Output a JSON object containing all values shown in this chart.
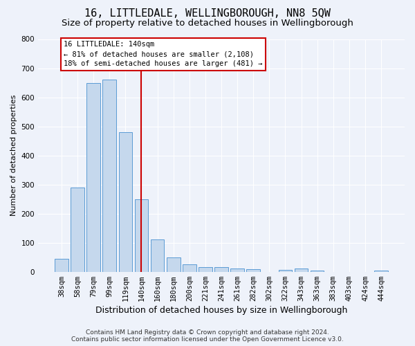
{
  "title": "16, LITTLEDALE, WELLINGBOROUGH, NN8 5QW",
  "subtitle": "Size of property relative to detached houses in Wellingborough",
  "xlabel": "Distribution of detached houses by size in Wellingborough",
  "ylabel": "Number of detached properties",
  "categories": [
    "38sqm",
    "58sqm",
    "79sqm",
    "99sqm",
    "119sqm",
    "140sqm",
    "160sqm",
    "180sqm",
    "200sqm",
    "221sqm",
    "241sqm",
    "261sqm",
    "282sqm",
    "302sqm",
    "322sqm",
    "343sqm",
    "363sqm",
    "383sqm",
    "403sqm",
    "424sqm",
    "444sqm"
  ],
  "values": [
    45,
    290,
    650,
    660,
    480,
    250,
    110,
    50,
    25,
    15,
    15,
    10,
    8,
    0,
    7,
    10,
    5,
    0,
    0,
    0,
    5
  ],
  "bar_color": "#c5d8ed",
  "bar_edge_color": "#5b9bd5",
  "highlight_index": 5,
  "highlight_line_color": "#cc0000",
  "annotation_text": "16 LITTLEDALE: 140sqm\n← 81% of detached houses are smaller (2,108)\n18% of semi-detached houses are larger (481) →",
  "annotation_box_color": "#ffffff",
  "annotation_box_edge": "#cc0000",
  "ylim": [
    0,
    800
  ],
  "yticks": [
    0,
    100,
    200,
    300,
    400,
    500,
    600,
    700,
    800
  ],
  "background_color": "#eef2fa",
  "grid_color": "#ffffff",
  "footer_line1": "Contains HM Land Registry data © Crown copyright and database right 2024.",
  "footer_line2": "Contains public sector information licensed under the Open Government Licence v3.0.",
  "title_fontsize": 11,
  "subtitle_fontsize": 9.5,
  "xlabel_fontsize": 9,
  "ylabel_fontsize": 8,
  "tick_fontsize": 7.5,
  "annotation_fontsize": 7.5,
  "footer_fontsize": 6.5
}
